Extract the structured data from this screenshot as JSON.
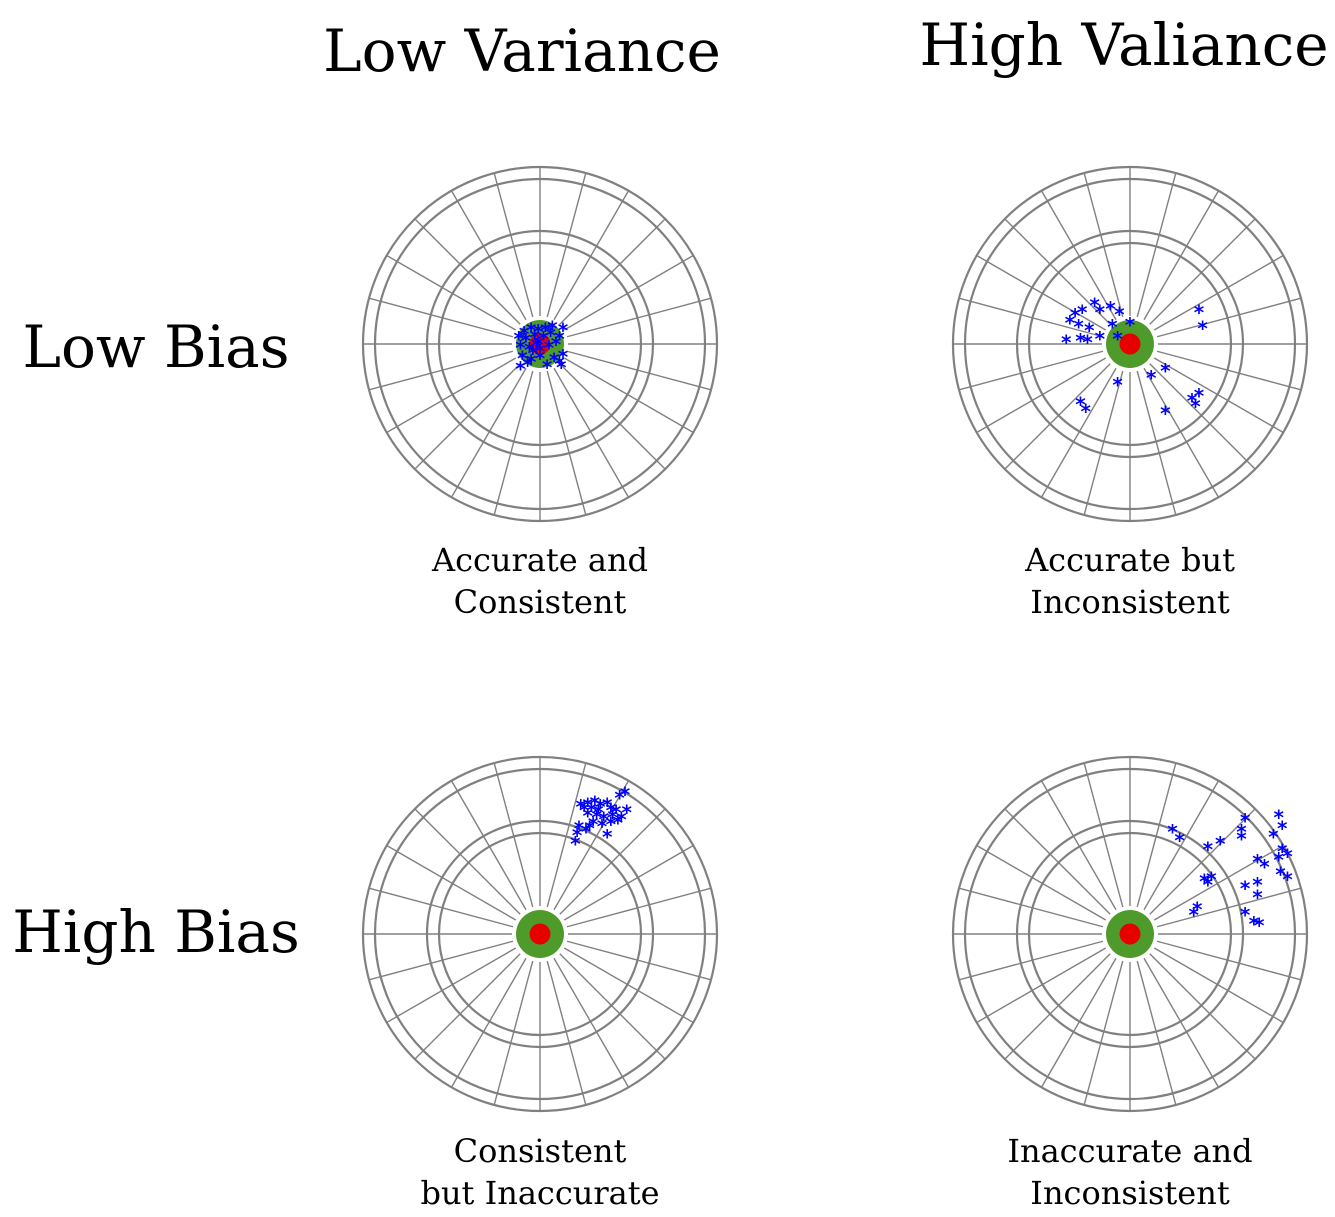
{
  "colors": {
    "ring": "#808080",
    "bull_outer": "#4e9a2a",
    "bull_inner": "#e60000",
    "shot": "#0000ff"
  },
  "headings": {
    "columns": [
      "Low Variance",
      "High Valiance"
    ],
    "rows": [
      "Low Bias",
      "High Bias"
    ]
  },
  "marker_glyph": "*",
  "targets": [
    {
      "caption": [
        "Accurate and",
        "Consistent"
      ],
      "shots": [
        [
          -0.09,
          0.08
        ],
        [
          -0.05,
          0.1
        ],
        [
          -0.01,
          0.09
        ],
        [
          0.03,
          0.1
        ],
        [
          0.07,
          0.11
        ],
        [
          0.13,
          0.1
        ],
        [
          -0.12,
          0.05
        ],
        [
          -0.08,
          0.04
        ],
        [
          -0.03,
          0.06
        ],
        [
          0.02,
          0.05
        ],
        [
          0.06,
          0.07
        ],
        [
          0.11,
          0.05
        ],
        [
          -0.11,
          0.0
        ],
        [
          -0.06,
          -0.01
        ],
        [
          -0.02,
          0.01
        ],
        [
          0.05,
          0.0
        ],
        [
          -0.1,
          -0.06
        ],
        [
          -0.05,
          -0.08
        ],
        [
          0.0,
          -0.06
        ],
        [
          0.08,
          -0.07
        ],
        [
          0.13,
          -0.05
        ],
        [
          -0.11,
          -0.12
        ],
        [
          -0.07,
          -0.1
        ],
        [
          0.04,
          -0.11
        ],
        [
          0.12,
          -0.11
        ],
        [
          -0.01,
          0.02
        ],
        [
          0.0,
          -0.02
        ],
        [
          0.09,
          0.02
        ],
        [
          -0.04,
          -0.03
        ],
        [
          0.11,
          -0.09
        ]
      ]
    },
    {
      "caption": [
        "Accurate but",
        "Inconsistent"
      ],
      "shots": [
        [
          -0.31,
          0.18
        ],
        [
          -0.27,
          0.2
        ],
        [
          -0.2,
          0.24
        ],
        [
          -0.17,
          0.2
        ],
        [
          -0.11,
          0.22
        ],
        [
          -0.06,
          0.19
        ],
        [
          0.0,
          0.13
        ],
        [
          -0.34,
          0.14
        ],
        [
          -0.29,
          0.12
        ],
        [
          -0.23,
          0.1
        ],
        [
          -0.1,
          0.12
        ],
        [
          -0.28,
          0.04
        ],
        [
          -0.24,
          0.03
        ],
        [
          -0.17,
          0.05
        ],
        [
          -0.07,
          0.05
        ],
        [
          0.39,
          0.2
        ],
        [
          0.41,
          0.11
        ],
        [
          -0.36,
          0.03
        ],
        [
          0.2,
          -0.13
        ],
        [
          0.12,
          -0.17
        ],
        [
          -0.07,
          -0.21
        ],
        [
          -0.28,
          -0.32
        ],
        [
          -0.25,
          -0.36
        ],
        [
          0.39,
          -0.27
        ],
        [
          0.35,
          -0.3
        ],
        [
          0.37,
          -0.33
        ],
        [
          0.2,
          -0.37
        ]
      ]
    },
    {
      "caption": [
        "Consistent",
        "but Inaccurate"
      ],
      "shots": [
        [
          0.23,
          0.74
        ],
        [
          0.27,
          0.75
        ],
        [
          0.31,
          0.76
        ],
        [
          0.34,
          0.74
        ],
        [
          0.38,
          0.75
        ],
        [
          0.45,
          0.79
        ],
        [
          0.25,
          0.72
        ],
        [
          0.29,
          0.72
        ],
        [
          0.33,
          0.71
        ],
        [
          0.4,
          0.72
        ],
        [
          0.43,
          0.71
        ],
        [
          0.48,
          0.81
        ],
        [
          0.27,
          0.69
        ],
        [
          0.32,
          0.68
        ],
        [
          0.36,
          0.67
        ],
        [
          0.41,
          0.68
        ],
        [
          0.46,
          0.67
        ],
        [
          0.22,
          0.62
        ],
        [
          0.3,
          0.64
        ],
        [
          0.35,
          0.63
        ],
        [
          0.44,
          0.65
        ],
        [
          0.21,
          0.58
        ],
        [
          0.26,
          0.6
        ],
        [
          0.38,
          0.57
        ],
        [
          0.2,
          0.53
        ],
        [
          0.28,
          0.62
        ],
        [
          0.4,
          0.64
        ],
        [
          0.49,
          0.71
        ]
      ]
    },
    {
      "caption": [
        "Inaccurate and",
        "Inconsistent"
      ],
      "shots": [
        [
          0.24,
          0.6
        ],
        [
          0.28,
          0.55
        ],
        [
          0.51,
          0.53
        ],
        [
          0.65,
          0.66
        ],
        [
          0.63,
          0.6
        ],
        [
          0.84,
          0.68
        ],
        [
          0.86,
          0.62
        ],
        [
          0.81,
          0.57
        ],
        [
          0.86,
          0.49
        ],
        [
          0.63,
          0.56
        ],
        [
          0.44,
          0.5
        ],
        [
          0.72,
          0.43
        ],
        [
          0.76,
          0.4
        ],
        [
          0.84,
          0.44
        ],
        [
          0.89,
          0.46
        ],
        [
          0.42,
          0.32
        ],
        [
          0.46,
          0.33
        ],
        [
          0.44,
          0.3
        ],
        [
          0.72,
          0.3
        ],
        [
          0.65,
          0.28
        ],
        [
          0.72,
          0.23
        ],
        [
          0.89,
          0.33
        ],
        [
          0.36,
          0.13
        ],
        [
          0.38,
          0.16
        ],
        [
          0.65,
          0.13
        ],
        [
          0.7,
          0.08
        ],
        [
          0.73,
          0.07
        ],
        [
          0.85,
          0.36
        ]
      ]
    }
  ]
}
